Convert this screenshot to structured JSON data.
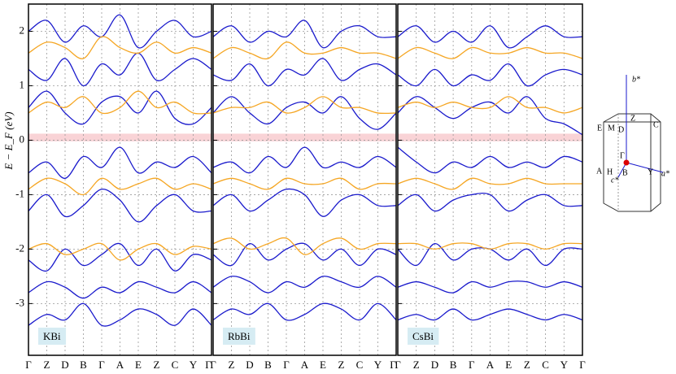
{
  "chart_data": [
    {
      "type": "line",
      "title": "KBi",
      "y_label": "E − E_F (eV)",
      "categories": [
        "Γ",
        "Z",
        "D",
        "B",
        "Γ",
        "A",
        "E",
        "Z",
        "C",
        "Y",
        "Γ"
      ],
      "ylim": [
        -3.95,
        2.5
      ],
      "yticks": [
        -3,
        -2,
        -1,
        0,
        1,
        2
      ],
      "grid": true,
      "shaded_range": [
        -0.02,
        0.12
      ],
      "series": [
        {
          "color": "#1a1acc",
          "values": [
            -3.4,
            -3.2,
            -3.3,
            -3.0,
            -3.4,
            -3.3,
            -3.1,
            -3.2,
            -3.4,
            -3.1,
            -3.4
          ]
        },
        {
          "color": "#1a1acc",
          "values": [
            -2.8,
            -2.6,
            -2.7,
            -2.9,
            -2.7,
            -2.8,
            -2.6,
            -2.7,
            -2.8,
            -2.6,
            -2.8
          ]
        },
        {
          "color": "#1a1acc",
          "values": [
            -2.2,
            -2.4,
            -2.0,
            -2.3,
            -2.1,
            -1.9,
            -2.3,
            -2.0,
            -2.4,
            -2.1,
            -2.2
          ]
        },
        {
          "color": "#1a1acc",
          "values": [
            -1.3,
            -1.0,
            -1.4,
            -1.2,
            -0.9,
            -1.1,
            -1.5,
            -1.2,
            -1.0,
            -1.3,
            -1.3
          ]
        },
        {
          "color": "#1a1acc",
          "values": [
            -0.6,
            -0.4,
            -0.7,
            -0.3,
            -0.5,
            -0.13,
            -0.6,
            -0.4,
            -0.5,
            -0.3,
            -0.6
          ]
        },
        {
          "color": "#1a1acc",
          "values": [
            0.6,
            0.9,
            0.5,
            0.3,
            0.7,
            0.8,
            0.5,
            0.9,
            0.4,
            0.3,
            0.6
          ]
        },
        {
          "color": "#1a1acc",
          "values": [
            1.3,
            1.1,
            1.5,
            1.0,
            1.4,
            1.2,
            1.6,
            1.1,
            1.3,
            1.5,
            1.3
          ]
        },
        {
          "color": "#1a1acc",
          "values": [
            2.0,
            2.2,
            1.8,
            2.1,
            1.9,
            2.3,
            1.7,
            2.0,
            2.2,
            1.9,
            2.0
          ]
        },
        {
          "color": "#f5a623",
          "values": [
            -2.0,
            -1.9,
            -2.1,
            -2.0,
            -1.9,
            -2.2,
            -2.0,
            -1.9,
            -2.1,
            -1.95,
            -2.0
          ]
        },
        {
          "color": "#f5a623",
          "values": [
            -0.9,
            -0.7,
            -0.8,
            -1.0,
            -0.7,
            -0.9,
            -0.8,
            -0.7,
            -0.9,
            -0.8,
            -0.9
          ]
        },
        {
          "color": "#f5a623",
          "values": [
            0.5,
            0.7,
            0.6,
            0.8,
            0.5,
            0.6,
            0.9,
            0.6,
            0.7,
            0.5,
            0.5
          ]
        },
        {
          "color": "#f5a623",
          "values": [
            1.6,
            1.8,
            1.7,
            1.5,
            1.9,
            1.7,
            1.6,
            1.8,
            1.6,
            1.7,
            1.6
          ]
        }
      ]
    },
    {
      "type": "line",
      "title": "RbBi",
      "categories": [
        "Γ",
        "Z",
        "D",
        "B",
        "Γ",
        "A",
        "E",
        "Z",
        "C",
        "Y",
        "Γ"
      ],
      "ylim": [
        -3.95,
        2.5
      ],
      "yticks": [
        -3,
        -2,
        -1,
        0,
        1,
        2
      ],
      "grid": true,
      "shaded_range": [
        -0.02,
        0.12
      ],
      "series": [
        {
          "color": "#1a1acc",
          "values": [
            -3.3,
            -3.1,
            -3.2,
            -3.0,
            -3.3,
            -3.2,
            -3.0,
            -3.1,
            -3.3,
            -3.0,
            -3.3
          ]
        },
        {
          "color": "#1a1acc",
          "values": [
            -2.7,
            -2.5,
            -2.6,
            -2.8,
            -2.6,
            -2.7,
            -2.5,
            -2.6,
            -2.7,
            -2.5,
            -2.7
          ]
        },
        {
          "color": "#1a1acc",
          "values": [
            -2.1,
            -2.3,
            -1.9,
            -2.2,
            -2.0,
            -1.9,
            -2.2,
            -2.0,
            -2.3,
            -2.0,
            -2.1
          ]
        },
        {
          "color": "#1a1acc",
          "values": [
            -1.2,
            -1.0,
            -1.3,
            -1.1,
            -0.9,
            -1.0,
            -1.4,
            -1.1,
            -1.0,
            -1.2,
            -1.2
          ]
        },
        {
          "color": "#1a1acc",
          "values": [
            -0.5,
            -0.4,
            -0.6,
            -0.3,
            -0.5,
            -0.13,
            -0.5,
            -0.4,
            -0.5,
            -0.3,
            -0.5
          ]
        },
        {
          "color": "#1a1acc",
          "values": [
            0.5,
            0.8,
            0.5,
            0.3,
            0.6,
            0.7,
            0.5,
            0.8,
            0.4,
            0.2,
            0.5
          ]
        },
        {
          "color": "#1a1acc",
          "values": [
            1.2,
            1.1,
            1.4,
            1.0,
            1.3,
            1.2,
            1.5,
            1.1,
            1.3,
            1.4,
            1.2
          ]
        },
        {
          "color": "#1a1acc",
          "values": [
            1.9,
            2.1,
            1.8,
            2.0,
            1.9,
            2.2,
            1.7,
            2.0,
            2.1,
            1.9,
            1.9
          ]
        },
        {
          "color": "#f5a623",
          "values": [
            -1.9,
            -1.8,
            -2.0,
            -1.9,
            -1.8,
            -2.1,
            -1.9,
            -1.8,
            -2.0,
            -1.9,
            -1.9
          ]
        },
        {
          "color": "#f5a623",
          "values": [
            -0.8,
            -0.7,
            -0.8,
            -0.9,
            -0.7,
            -0.8,
            -0.8,
            -0.7,
            -0.9,
            -0.8,
            -0.8
          ]
        },
        {
          "color": "#f5a623",
          "values": [
            0.5,
            0.6,
            0.6,
            0.7,
            0.5,
            0.6,
            0.8,
            0.6,
            0.6,
            0.5,
            0.5
          ]
        },
        {
          "color": "#f5a623",
          "values": [
            1.5,
            1.7,
            1.6,
            1.5,
            1.8,
            1.6,
            1.6,
            1.7,
            1.6,
            1.6,
            1.5
          ]
        }
      ]
    },
    {
      "type": "line",
      "title": "CsBi",
      "categories": [
        "Γ",
        "Z",
        "D",
        "B",
        "Γ",
        "A",
        "E",
        "Z",
        "C",
        "Y",
        "Γ"
      ],
      "ylim": [
        -3.95,
        2.5
      ],
      "yticks": [
        -3,
        -2,
        -1,
        0,
        1,
        2
      ],
      "grid": true,
      "shaded_range": [
        -0.02,
        0.12
      ],
      "series": [
        {
          "color": "#1a1acc",
          "values": [
            -3.3,
            -3.2,
            -3.3,
            -3.1,
            -3.3,
            -3.2,
            -3.1,
            -3.2,
            -3.3,
            -3.2,
            -3.3
          ]
        },
        {
          "color": "#1a1acc",
          "values": [
            -2.7,
            -2.6,
            -2.7,
            -2.8,
            -2.6,
            -2.7,
            -2.6,
            -2.6,
            -2.7,
            -2.6,
            -2.7
          ]
        },
        {
          "color": "#1a1acc",
          "values": [
            -2.0,
            -2.3,
            -1.9,
            -2.2,
            -2.0,
            -2.0,
            -2.2,
            -2.0,
            -2.3,
            -2.0,
            -2.0
          ]
        },
        {
          "color": "#1a1acc",
          "values": [
            -1.2,
            -1.0,
            -1.3,
            -1.1,
            -1.0,
            -1.0,
            -1.3,
            -1.1,
            -1.0,
            -1.2,
            -1.2
          ]
        },
        {
          "color": "#1a1acc",
          "values": [
            -0.13,
            -0.4,
            -0.6,
            -0.4,
            -0.5,
            -0.3,
            -0.5,
            -0.4,
            -0.5,
            -0.3,
            -0.4
          ]
        },
        {
          "color": "#1a1acc",
          "values": [
            0.5,
            0.8,
            0.6,
            0.4,
            0.6,
            0.7,
            0.5,
            0.8,
            0.4,
            0.3,
            0.1
          ]
        },
        {
          "color": "#1a1acc",
          "values": [
            1.2,
            1.0,
            1.3,
            1.0,
            1.2,
            1.1,
            1.4,
            1.0,
            1.2,
            1.3,
            1.2
          ]
        },
        {
          "color": "#1a1acc",
          "values": [
            1.9,
            2.1,
            1.8,
            2.0,
            1.8,
            2.1,
            1.7,
            1.9,
            2.1,
            1.9,
            1.9
          ]
        },
        {
          "color": "#f5a623",
          "values": [
            -1.9,
            -1.9,
            -2.0,
            -1.9,
            -1.9,
            -2.0,
            -1.9,
            -1.9,
            -2.0,
            -1.9,
            -1.9
          ]
        },
        {
          "color": "#f5a623",
          "values": [
            -0.8,
            -0.7,
            -0.8,
            -0.9,
            -0.7,
            -0.8,
            -0.8,
            -0.7,
            -0.8,
            -0.8,
            -0.8
          ]
        },
        {
          "color": "#f5a623",
          "values": [
            0.6,
            0.7,
            0.6,
            0.7,
            0.6,
            0.6,
            0.8,
            0.6,
            0.6,
            0.5,
            0.6
          ]
        },
        {
          "color": "#f5a623",
          "values": [
            1.5,
            1.7,
            1.6,
            1.5,
            1.7,
            1.6,
            1.6,
            1.7,
            1.6,
            1.6,
            1.5
          ]
        }
      ]
    }
  ],
  "brillouin_zone": {
    "labels": [
      "b*",
      "Z",
      "C",
      "E",
      "M",
      "D",
      "Γ",
      "A",
      "H",
      "B",
      "Y",
      "a*",
      "c*"
    ]
  }
}
